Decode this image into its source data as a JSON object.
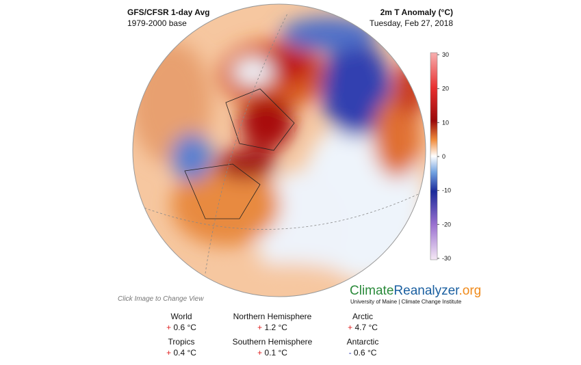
{
  "header": {
    "title": "GFS/CFSR 1-day Avg",
    "subtitle": "1979-2000 base",
    "variable": "2m T Anomaly (°C)",
    "date": "Tuesday, Feb 27, 2018"
  },
  "colorbar": {
    "lim": [
      -30,
      30
    ],
    "ticks": [
      30,
      20,
      10,
      0,
      -10,
      -20,
      -30
    ]
  },
  "hint": "Click Image to Change View",
  "logo": {
    "parts": [
      "Climate",
      "Reanalyzer",
      ".org"
    ],
    "tagline": "University of Maine | Climate Change Institute"
  },
  "stats": [
    {
      "label": "World",
      "sign": "+",
      "value": "0.6 °C"
    },
    {
      "label": "Northern Hemisphere",
      "sign": "+",
      "value": "1.2 °C"
    },
    {
      "label": "Arctic",
      "sign": "+",
      "value": "4.7 °C"
    },
    {
      "label": "Tropics",
      "sign": "+",
      "value": "0.4 °C"
    },
    {
      "label": "Southern Hemisphere",
      "sign": "+",
      "value": "0.1 °C"
    },
    {
      "label": "Antarctic",
      "sign": "-",
      "value": "0.6 °C"
    }
  ]
}
